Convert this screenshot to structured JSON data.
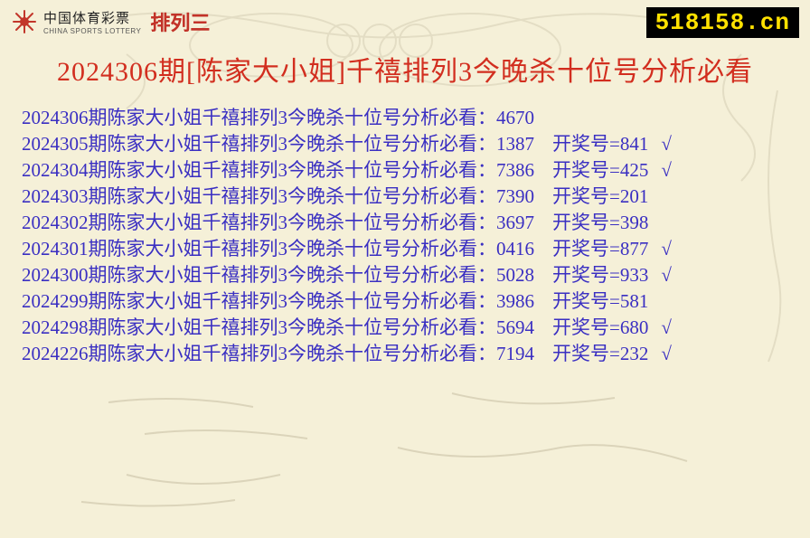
{
  "header": {
    "logo_cn": "中国体育彩票",
    "logo_en": "CHINA SPORTS LOTTERY",
    "pailie": "排列三",
    "site_badge": "518158.cn"
  },
  "title": "2024306期[陈家大小姐]千禧排列3今晚杀十位号分析必看",
  "row_label": "陈家大小姐千禧排列3今晚杀十位号分析必看：",
  "result_label": "开奖号=",
  "check_glyph": "√",
  "colors": {
    "bg": "#f5f0d8",
    "title": "#d22e1f",
    "row_text": "#3a2fc2",
    "badge_bg": "#000000",
    "badge_fg": "#ffe100"
  },
  "rows": [
    {
      "period": "2024306期",
      "pred": "4670",
      "result": "",
      "check": false
    },
    {
      "period": "2024305期",
      "pred": "1387",
      "result": "841",
      "check": true
    },
    {
      "period": "2024304期",
      "pred": "7386",
      "result": "425",
      "check": true
    },
    {
      "period": "2024303期",
      "pred": "7390",
      "result": "201",
      "check": false
    },
    {
      "period": "2024302期",
      "pred": "3697",
      "result": "398",
      "check": false
    },
    {
      "period": "2024301期",
      "pred": "0416",
      "result": "877",
      "check": true
    },
    {
      "period": "2024300期",
      "pred": "5028",
      "result": "933",
      "check": true
    },
    {
      "period": "2024299期",
      "pred": "3986",
      "result": "581",
      "check": false
    },
    {
      "period": "2024298期",
      "pred": "5694",
      "result": "680",
      "check": true
    },
    {
      "period": "2024226期",
      "pred": "7194",
      "result": "232",
      "check": true
    }
  ]
}
